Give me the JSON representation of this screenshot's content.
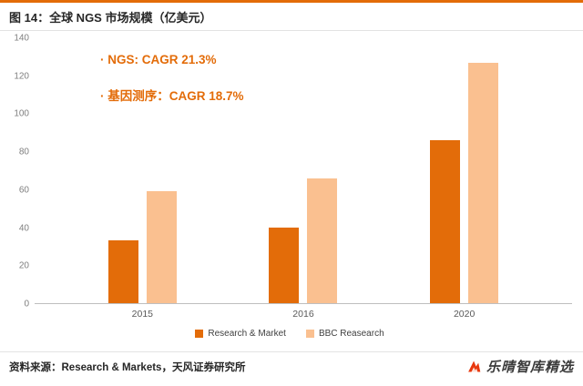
{
  "header": {
    "title": "图 14：全球 NGS 市场规模（亿美元）"
  },
  "colors": {
    "accent_line": "#E36C09",
    "annotation_text": "#E36C09",
    "series_dark": "#E36C09",
    "series_light": "#FAC090"
  },
  "annotations": {
    "line1": "· NGS: CAGR 21.3%",
    "line2": "· 基因测序：CAGR 18.7%"
  },
  "chart_data": {
    "type": "bar",
    "title": "全球 NGS 市场规模（亿美元）",
    "categories": [
      "2015",
      "2016",
      "2020"
    ],
    "series": [
      {
        "name": "Research & Market",
        "color": "#E36C09",
        "values": [
          33,
          40,
          86
        ]
      },
      {
        "name": "BBC Reasearch",
        "color": "#FAC090",
        "values": [
          59,
          66,
          127
        ]
      }
    ],
    "ylim": [
      0,
      140
    ],
    "ytick_step": 20,
    "xlabel": "",
    "ylabel": "",
    "grid": false,
    "legend_position": "bottom",
    "annotations": [
      "· NGS: CAGR 21.3%",
      "· 基因测序：CAGR 18.7%"
    ]
  },
  "footer": {
    "source": "资料来源：Research & Markets，天风证券研究所",
    "watermark": "乐晴智库精选"
  }
}
